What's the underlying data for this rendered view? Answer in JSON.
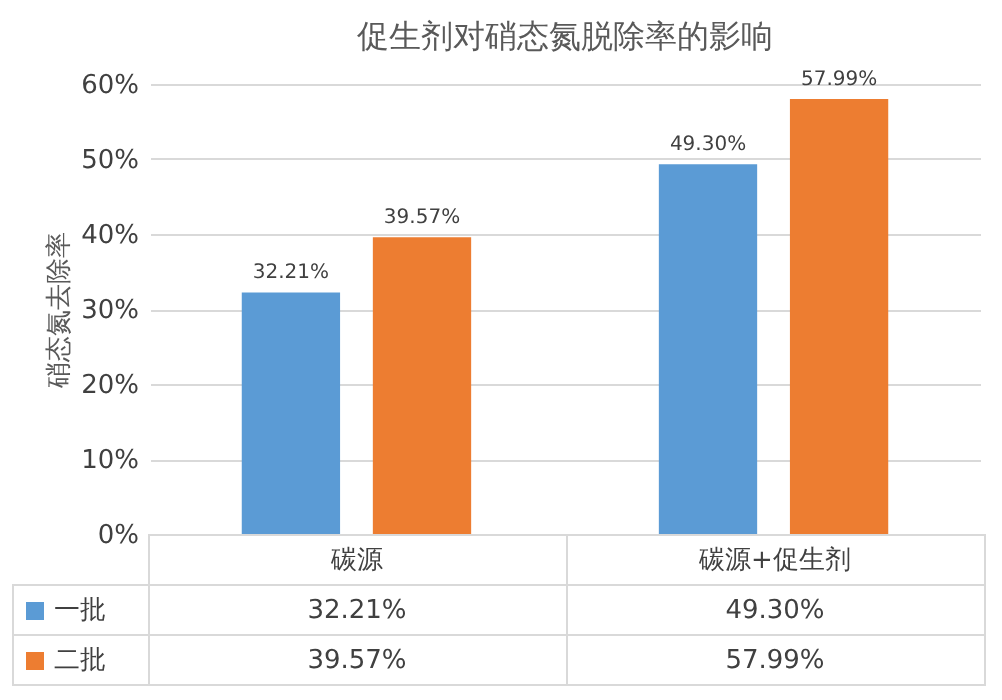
{
  "chart_data": {
    "type": "bar",
    "title": "促生剂对硝态氮脱除率的影响",
    "ylabel": "硝态氮去除率",
    "categories": [
      "碳源",
      "碳源+促生剂"
    ],
    "series": [
      {
        "name": "一批",
        "color": "#5b9bd5",
        "values": [
          32.21,
          49.3
        ],
        "value_labels": [
          "32.21%",
          "49.30%"
        ]
      },
      {
        "name": "二批",
        "color": "#ed7d31",
        "values": [
          39.57,
          57.99
        ],
        "value_labels": [
          "39.57%",
          "57.99%"
        ]
      }
    ],
    "ylim": [
      0,
      60
    ],
    "yticks": [
      {
        "value": 0,
        "label": "0%"
      },
      {
        "value": 10,
        "label": "10%"
      },
      {
        "value": 20,
        "label": "20%"
      },
      {
        "value": 30,
        "label": "30%"
      },
      {
        "value": 40,
        "label": "40%"
      },
      {
        "value": 50,
        "label": "50%"
      },
      {
        "value": 60,
        "label": "60%"
      }
    ],
    "grid": "y",
    "legend": "bottom"
  }
}
